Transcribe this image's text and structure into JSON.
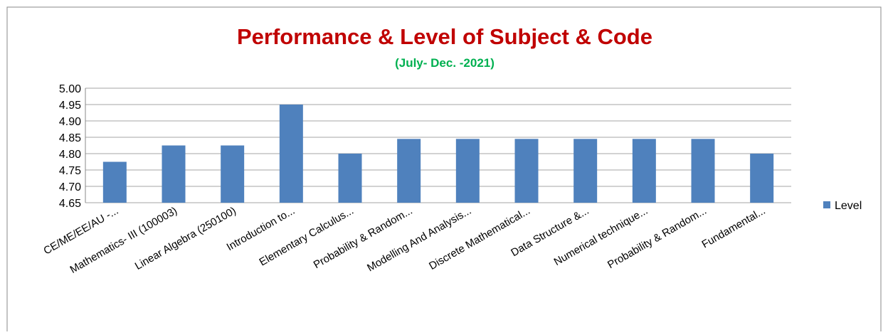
{
  "chart_data": {
    "type": "bar",
    "title": "Performance & Level of Subject & Code",
    "subtitle": "(July- Dec. -2021)",
    "categories": [
      "CE/ME/EE/AU -...",
      "Mathematics- III (100003)",
      "Linear Algebra (250100)",
      "Introduction to...",
      "Elementary Calculus...",
      "Probability & Random...",
      "Modelling And Analysis...",
      "Discrete Mathematical...",
      "Data Structure &...",
      "Numerical technique...",
      "Probability & Random...",
      "Fundamental..."
    ],
    "series": [
      {
        "name": "Level",
        "color": "#4f81bd",
        "values": [
          4.775,
          4.825,
          4.825,
          4.95,
          4.8,
          4.845,
          4.845,
          4.845,
          4.845,
          4.845,
          4.845,
          4.8
        ]
      }
    ],
    "ylim": [
      4.65,
      5.0
    ],
    "yticks": [
      {
        "value": 4.65,
        "label": "4.65"
      },
      {
        "value": 4.7,
        "label": "4.70"
      },
      {
        "value": 4.75,
        "label": "4.75"
      },
      {
        "value": 4.8,
        "label": "4.80"
      },
      {
        "value": 4.85,
        "label": "4.85"
      },
      {
        "value": 4.9,
        "label": "4.90"
      },
      {
        "value": 4.95,
        "label": "4.95"
      },
      {
        "value": 5.0,
        "label": "5.00"
      }
    ],
    "grid": true,
    "legend": "right"
  }
}
